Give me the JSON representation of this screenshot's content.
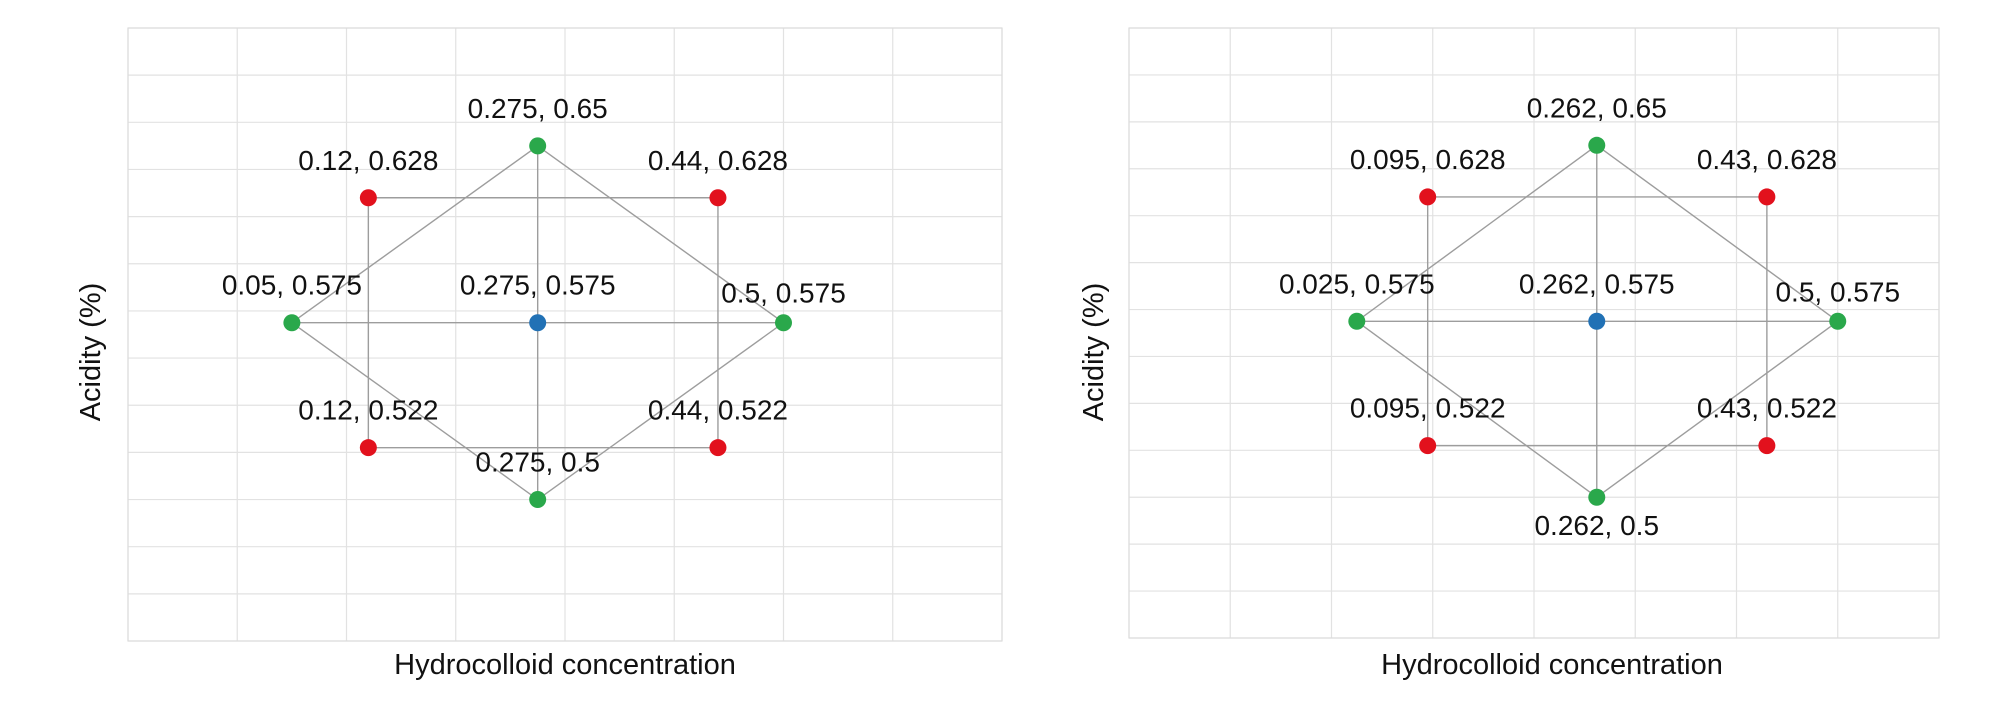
{
  "chart_data": [
    {
      "type": "scatter",
      "title": "",
      "xlabel": "Hydrocolloid concentration",
      "ylabel": "Acidity (%)",
      "xlim": [
        -0.1,
        0.7
      ],
      "ylim": [
        0.44,
        0.7
      ],
      "grid": true,
      "legend": "none",
      "points": [
        {
          "x": 0.12,
          "y": 0.628,
          "label": "0.12, 0.628",
          "color": "#e2111d"
        },
        {
          "x": 0.44,
          "y": 0.628,
          "label": "0.44, 0.628",
          "color": "#e2111d"
        },
        {
          "x": 0.12,
          "y": 0.522,
          "label": "0.12, 0.522",
          "color": "#e2111d"
        },
        {
          "x": 0.44,
          "y": 0.522,
          "label": "0.44, 0.522",
          "color": "#e2111d"
        },
        {
          "x": 0.275,
          "y": 0.65,
          "label": "0.275, 0.65",
          "color": "#2aa84b"
        },
        {
          "x": 0.05,
          "y": 0.575,
          "label": "0.05, 0.575",
          "color": "#2aa84b"
        },
        {
          "x": 0.5,
          "y": 0.575,
          "label": "0.5, 0.575",
          "color": "#2aa84b"
        },
        {
          "x": 0.275,
          "y": 0.5,
          "label": "0.275, 0.5",
          "color": "#2aa84b"
        },
        {
          "x": 0.275,
          "y": 0.575,
          "label": "0.275, 0.575",
          "color": "#2171b5"
        }
      ]
    },
    {
      "type": "scatter",
      "title": "",
      "xlabel": "Hydrocolloid concentration",
      "ylabel": "Acidity (%)",
      "xlim": [
        -0.2,
        0.6
      ],
      "ylim": [
        0.44,
        0.7
      ],
      "grid": true,
      "legend": "none",
      "points": [
        {
          "x": 0.095,
          "y": 0.628,
          "label": "0.095, 0.628",
          "color": "#e2111d"
        },
        {
          "x": 0.43,
          "y": 0.628,
          "label": "0.43, 0.628",
          "color": "#e2111d"
        },
        {
          "x": 0.095,
          "y": 0.522,
          "label": "0.095, 0.522",
          "color": "#e2111d"
        },
        {
          "x": 0.43,
          "y": 0.522,
          "label": "0.43, 0.522",
          "color": "#e2111d"
        },
        {
          "x": 0.262,
          "y": 0.65,
          "label": "0.262, 0.65",
          "color": "#2aa84b"
        },
        {
          "x": 0.025,
          "y": 0.575,
          "label": "0.025, 0.575",
          "color": "#2aa84b"
        },
        {
          "x": 0.5,
          "y": 0.575,
          "label": "0.5, 0.575",
          "color": "#2aa84b"
        },
        {
          "x": 0.262,
          "y": 0.5,
          "label": "0.262, 0.5",
          "color": "#2aa84b"
        },
        {
          "x": 0.262,
          "y": 0.575,
          "label": "0.262, 0.575",
          "color": "#2171b5"
        }
      ]
    }
  ]
}
